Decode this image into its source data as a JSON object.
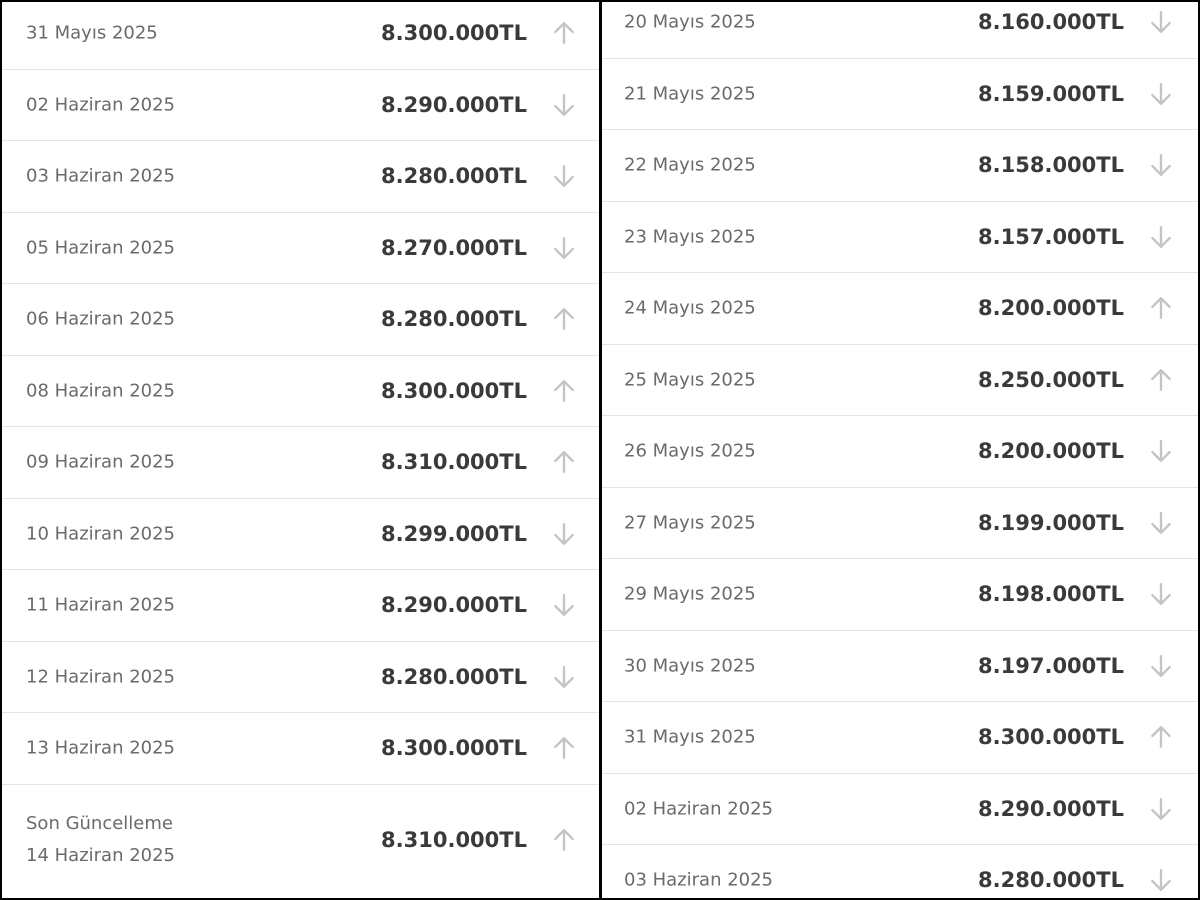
{
  "left_rows": [
    {
      "date": "31 Mayıs 2025",
      "price": "8.300.000TL",
      "dir": "up"
    },
    {
      "date": "02 Haziran 2025",
      "price": "8.290.000TL",
      "dir": "down"
    },
    {
      "date": "03 Haziran 2025",
      "price": "8.280.000TL",
      "dir": "down"
    },
    {
      "date": "05 Haziran 2025",
      "price": "8.270.000TL",
      "dir": "down"
    },
    {
      "date": "06 Haziran 2025",
      "price": "8.280.000TL",
      "dir": "up"
    },
    {
      "date": "08 Haziran 2025",
      "price": "8.300.000TL",
      "dir": "up"
    },
    {
      "date": "09 Haziran 2025",
      "price": "8.310.000TL",
      "dir": "up"
    },
    {
      "date": "10 Haziran 2025",
      "price": "8.299.000TL",
      "dir": "down"
    },
    {
      "date": "11 Haziran 2025",
      "price": "8.290.000TL",
      "dir": "down"
    },
    {
      "date": "12 Haziran 2025",
      "price": "8.280.000TL",
      "dir": "down"
    },
    {
      "date": "13 Haziran 2025",
      "price": "8.300.000TL",
      "dir": "up"
    }
  ],
  "last_update": {
    "label": "Son Güncelleme",
    "date": "14 Haziran 2025",
    "price": "8.310.000TL",
    "dir": "up"
  },
  "right_rows": [
    {
      "date": "20 Mayıs 2025",
      "price": "8.160.000TL",
      "dir": "down"
    },
    {
      "date": "21 Mayıs 2025",
      "price": "8.159.000TL",
      "dir": "down"
    },
    {
      "date": "22 Mayıs 2025",
      "price": "8.158.000TL",
      "dir": "down"
    },
    {
      "date": "23 Mayıs 2025",
      "price": "8.157.000TL",
      "dir": "down"
    },
    {
      "date": "24 Mayıs 2025",
      "price": "8.200.000TL",
      "dir": "up"
    },
    {
      "date": "25 Mayıs 2025",
      "price": "8.250.000TL",
      "dir": "up"
    },
    {
      "date": "26 Mayıs 2025",
      "price": "8.200.000TL",
      "dir": "down"
    },
    {
      "date": "27 Mayıs 2025",
      "price": "8.199.000TL",
      "dir": "down"
    },
    {
      "date": "29 Mayıs 2025",
      "price": "8.198.000TL",
      "dir": "down"
    },
    {
      "date": "30 Mayıs 2025",
      "price": "8.197.000TL",
      "dir": "down"
    },
    {
      "date": "31 Mayıs 2025",
      "price": "8.300.000TL",
      "dir": "up"
    },
    {
      "date": "02 Haziran 2025",
      "price": "8.290.000TL",
      "dir": "down"
    },
    {
      "date": "03 Haziran 2025",
      "price": "8.280.000TL",
      "dir": "down"
    }
  ],
  "colors": {
    "text_date": "#6a6a6a",
    "text_price": "#3a3a3a",
    "arrow": "#c4c4c4",
    "divider": "#e4e4e4",
    "background": "#ffffff"
  },
  "icons": {
    "up": "arrow-up-icon",
    "down": "arrow-down-icon"
  }
}
